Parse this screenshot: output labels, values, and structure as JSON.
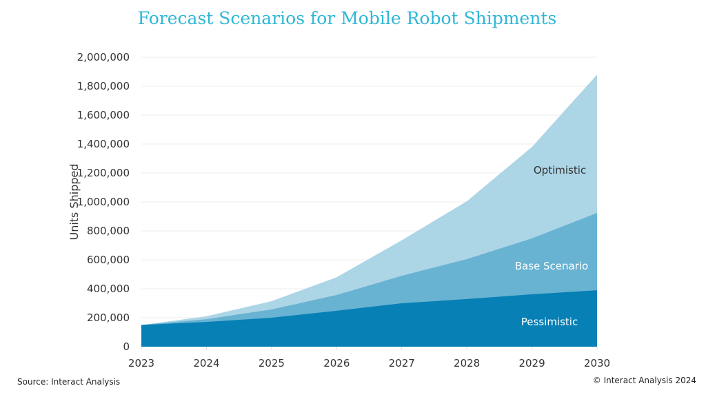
{
  "chart_data": {
    "type": "area",
    "title": "Forecast Scenarios for Mobile Robot Shipments",
    "xlabel": "",
    "ylabel": "Units Shipped",
    "categories": [
      "2023",
      "2024",
      "2025",
      "2026",
      "2027",
      "2028",
      "2029",
      "2030"
    ],
    "ylim": [
      0,
      2000000
    ],
    "yticks": [
      "0",
      "200,000",
      "400,000",
      "600,000",
      "800,000",
      "1,000,000",
      "1,200,000",
      "1,400,000",
      "1,600,000",
      "1,800,000",
      "2,000,000"
    ],
    "grid": true,
    "series": [
      {
        "name": "Optimistic",
        "color": "#acd5e6",
        "label_color": "#333333",
        "values": [
          150000,
          210000,
          314000,
          480000,
          735000,
          1005000,
          1380000,
          1880000
        ]
      },
      {
        "name": "Base Scenario",
        "color": "#68b2d2",
        "label_color": "#ffffff",
        "values": [
          150000,
          190000,
          257000,
          357000,
          490000,
          605000,
          748000,
          924000
        ]
      },
      {
        "name": "Pessimistic",
        "color": "#0680b5",
        "label_color": "#ffffff",
        "values": [
          150000,
          171000,
          200000,
          248000,
          300000,
          329000,
          362000,
          390000
        ]
      }
    ]
  },
  "footer": {
    "source": "Source: Interact Analysis",
    "copyright": "© Interact Analysis 2024"
  }
}
